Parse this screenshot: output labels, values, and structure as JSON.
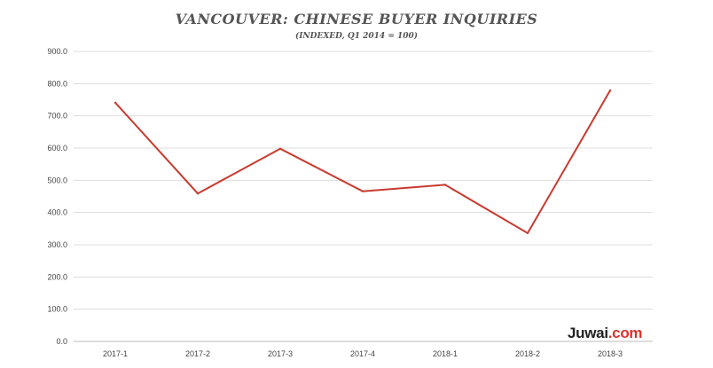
{
  "chart_data": {
    "type": "line",
    "title": "VANCOUVER: CHINESE BUYER INQUIRIES",
    "subtitle": "(INDEXED, Q1 2014 = 100)",
    "xlabel": "",
    "ylabel": "",
    "categories": [
      "2017-1",
      "2017-2",
      "2017-3",
      "2017-4",
      "2018-1",
      "2018-2",
      "2018-3"
    ],
    "values": [
      741,
      459,
      598,
      466,
      486,
      336,
      779
    ],
    "ylim": [
      0,
      900
    ],
    "yticks": [
      "0.0",
      "100.0",
      "200.0",
      "300.0",
      "400.0",
      "500.0",
      "600.0",
      "700.0",
      "800.0",
      "900.0"
    ],
    "grid": true,
    "line_color": "#c83a2f",
    "grid_color": "#dddddd"
  },
  "brand": {
    "name": "Juwai",
    "suffix": ".com",
    "accent_color": "#d8342b"
  }
}
